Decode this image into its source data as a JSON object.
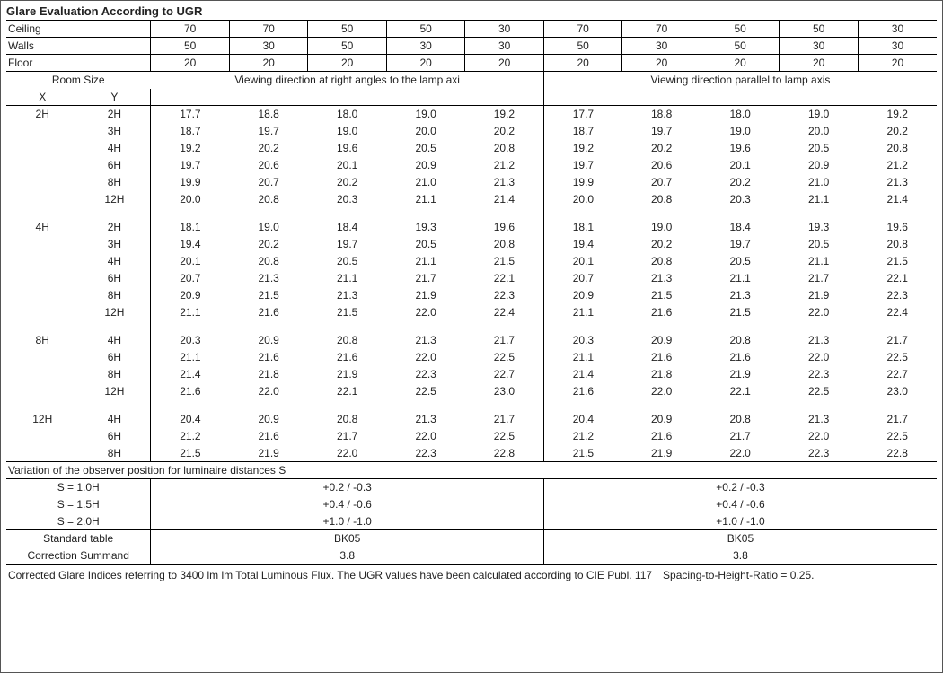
{
  "title": "Glare Evaluation According to UGR",
  "header_rows": [
    {
      "label": "Ceiling",
      "left": [
        "70",
        "70",
        "50",
        "50",
        "30"
      ],
      "right": [
        "70",
        "70",
        "50",
        "50",
        "30"
      ]
    },
    {
      "label": "Walls",
      "left": [
        "50",
        "30",
        "50",
        "30",
        "30"
      ],
      "right": [
        "50",
        "30",
        "50",
        "30",
        "30"
      ]
    },
    {
      "label": "Floor",
      "left": [
        "20",
        "20",
        "20",
        "20",
        "20"
      ],
      "right": [
        "20",
        "20",
        "20",
        "20",
        "20"
      ]
    }
  ],
  "room_size_label": "Room Size",
  "x_label": "X",
  "y_label": "Y",
  "direction_left": "Viewing direction at right angles to the lamp axi",
  "direction_right": "Viewing direction parallel to lamp axis",
  "groups": [
    {
      "x": "2H",
      "rows": [
        {
          "y": "2H",
          "l": [
            "17.7",
            "18.8",
            "18.0",
            "19.0",
            "19.2"
          ],
          "r": [
            "17.7",
            "18.8",
            "18.0",
            "19.0",
            "19.2"
          ]
        },
        {
          "y": "3H",
          "l": [
            "18.7",
            "19.7",
            "19.0",
            "20.0",
            "20.2"
          ],
          "r": [
            "18.7",
            "19.7",
            "19.0",
            "20.0",
            "20.2"
          ]
        },
        {
          "y": "4H",
          "l": [
            "19.2",
            "20.2",
            "19.6",
            "20.5",
            "20.8"
          ],
          "r": [
            "19.2",
            "20.2",
            "19.6",
            "20.5",
            "20.8"
          ]
        },
        {
          "y": "6H",
          "l": [
            "19.7",
            "20.6",
            "20.1",
            "20.9",
            "21.2"
          ],
          "r": [
            "19.7",
            "20.6",
            "20.1",
            "20.9",
            "21.2"
          ]
        },
        {
          "y": "8H",
          "l": [
            "19.9",
            "20.7",
            "20.2",
            "21.0",
            "21.3"
          ],
          "r": [
            "19.9",
            "20.7",
            "20.2",
            "21.0",
            "21.3"
          ]
        },
        {
          "y": "12H",
          "l": [
            "20.0",
            "20.8",
            "20.3",
            "21.1",
            "21.4"
          ],
          "r": [
            "20.0",
            "20.8",
            "20.3",
            "21.1",
            "21.4"
          ]
        }
      ]
    },
    {
      "x": "4H",
      "rows": [
        {
          "y": "2H",
          "l": [
            "18.1",
            "19.0",
            "18.4",
            "19.3",
            "19.6"
          ],
          "r": [
            "18.1",
            "19.0",
            "18.4",
            "19.3",
            "19.6"
          ]
        },
        {
          "y": "3H",
          "l": [
            "19.4",
            "20.2",
            "19.7",
            "20.5",
            "20.8"
          ],
          "r": [
            "19.4",
            "20.2",
            "19.7",
            "20.5",
            "20.8"
          ]
        },
        {
          "y": "4H",
          "l": [
            "20.1",
            "20.8",
            "20.5",
            "21.1",
            "21.5"
          ],
          "r": [
            "20.1",
            "20.8",
            "20.5",
            "21.1",
            "21.5"
          ]
        },
        {
          "y": "6H",
          "l": [
            "20.7",
            "21.3",
            "21.1",
            "21.7",
            "22.1"
          ],
          "r": [
            "20.7",
            "21.3",
            "21.1",
            "21.7",
            "22.1"
          ]
        },
        {
          "y": "8H",
          "l": [
            "20.9",
            "21.5",
            "21.3",
            "21.9",
            "22.3"
          ],
          "r": [
            "20.9",
            "21.5",
            "21.3",
            "21.9",
            "22.3"
          ]
        },
        {
          "y": "12H",
          "l": [
            "21.1",
            "21.6",
            "21.5",
            "22.0",
            "22.4"
          ],
          "r": [
            "21.1",
            "21.6",
            "21.5",
            "22.0",
            "22.4"
          ]
        }
      ]
    },
    {
      "x": "8H",
      "rows": [
        {
          "y": "4H",
          "l": [
            "20.3",
            "20.9",
            "20.8",
            "21.3",
            "21.7"
          ],
          "r": [
            "20.3",
            "20.9",
            "20.8",
            "21.3",
            "21.7"
          ]
        },
        {
          "y": "6H",
          "l": [
            "21.1",
            "21.6",
            "21.6",
            "22.0",
            "22.5"
          ],
          "r": [
            "21.1",
            "21.6",
            "21.6",
            "22.0",
            "22.5"
          ]
        },
        {
          "y": "8H",
          "l": [
            "21.4",
            "21.8",
            "21.9",
            "22.3",
            "22.7"
          ],
          "r": [
            "21.4",
            "21.8",
            "21.9",
            "22.3",
            "22.7"
          ]
        },
        {
          "y": "12H",
          "l": [
            "21.6",
            "22.0",
            "22.1",
            "22.5",
            "23.0"
          ],
          "r": [
            "21.6",
            "22.0",
            "22.1",
            "22.5",
            "23.0"
          ]
        }
      ]
    },
    {
      "x": "12H",
      "rows": [
        {
          "y": "4H",
          "l": [
            "20.4",
            "20.9",
            "20.8",
            "21.3",
            "21.7"
          ],
          "r": [
            "20.4",
            "20.9",
            "20.8",
            "21.3",
            "21.7"
          ]
        },
        {
          "y": "6H",
          "l": [
            "21.2",
            "21.6",
            "21.7",
            "22.0",
            "22.5"
          ],
          "r": [
            "21.2",
            "21.6",
            "21.7",
            "22.0",
            "22.5"
          ]
        },
        {
          "y": "8H",
          "l": [
            "21.5",
            "21.9",
            "22.0",
            "22.3",
            "22.8"
          ],
          "r": [
            "21.5",
            "21.9",
            "22.0",
            "22.3",
            "22.8"
          ]
        }
      ]
    }
  ],
  "variation_title": "Variation of the observer position for luminaire distances S",
  "variation_rows": [
    {
      "label": "S = 1.0H",
      "left": "+0.2 / -0.3",
      "right": "+0.2 / -0.3"
    },
    {
      "label": "S = 1.5H",
      "left": "+0.4 / -0.6",
      "right": "+0.4 / -0.6"
    },
    {
      "label": "S = 2.0H",
      "left": "+1.0 / -1.0",
      "right": "+1.0 / -1.0"
    }
  ],
  "standard_table_label": "Standard table",
  "standard_table_left": "BK05",
  "standard_table_right": "BK05",
  "correction_label": "Correction Summand",
  "correction_left": "3.8",
  "correction_right": "3.8",
  "footnote": "Corrected Glare Indices referring to 3400 lm lm Total Luminous Flux. The UGR values have been calculated according to CIE Publ. 117 Spacing-to-Height-Ratio = 0.25."
}
